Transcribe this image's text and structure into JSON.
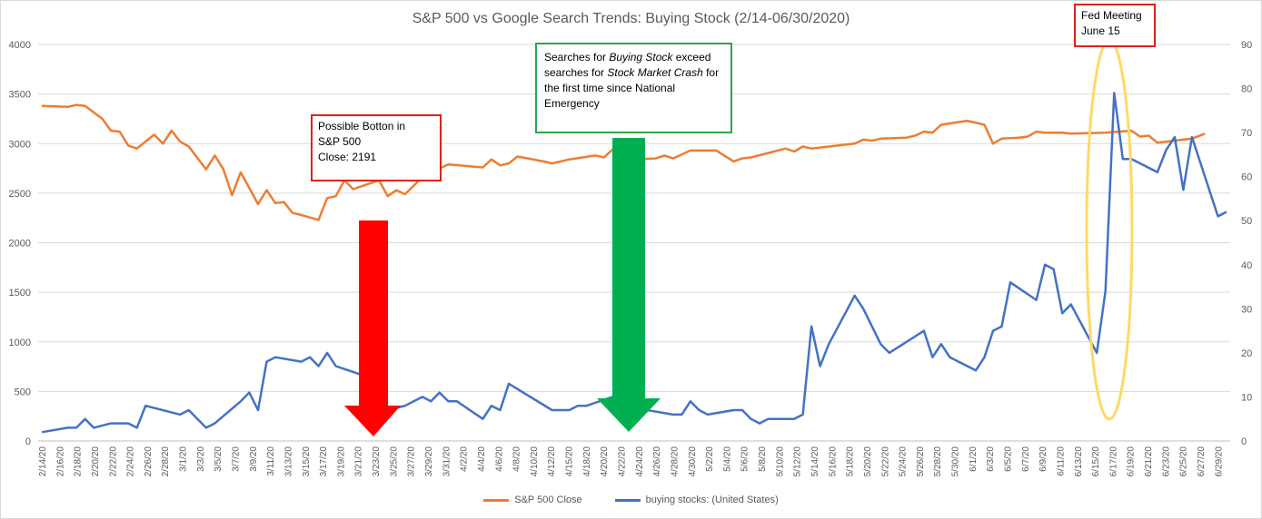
{
  "chart_data": {
    "type": "line",
    "title": "S&P 500 vs Google Search Trends: Buying Stock (2/14-06/30/2020)",
    "y_left": {
      "min": 0,
      "max": 4000,
      "ticks": [
        "0",
        "500",
        "1000",
        "1500",
        "2000",
        "2500",
        "3000",
        "3500",
        "4000"
      ]
    },
    "y_right": {
      "min": 0,
      "max": 90,
      "ticks": [
        "0",
        "10",
        "20",
        "30",
        "40",
        "50",
        "60",
        "70",
        "80",
        "90"
      ]
    },
    "x_tick_labels": [
      "2/14/20",
      "2/16/20",
      "2/18/20",
      "2/20/20",
      "2/22/20",
      "2/24/20",
      "2/26/20",
      "2/28/20",
      "3/1/20",
      "3/3/20",
      "3/5/20",
      "3/7/20",
      "3/9/20",
      "3/11/20",
      "3/13/20",
      "3/15/20",
      "3/17/20",
      "3/19/20",
      "3/21/20",
      "3/23/20",
      "3/25/20",
      "3/27/20",
      "3/29/20",
      "3/31/20",
      "4/2/20",
      "4/4/20",
      "4/6/20",
      "4/8/20",
      "4/10/20",
      "4/12/20",
      "4/15/20",
      "4/18/20",
      "4/20/20",
      "4/22/20",
      "4/24/20",
      "4/26/20",
      "4/28/20",
      "4/30/20",
      "5/2/20",
      "5/4/20",
      "5/6/20",
      "5/8/20",
      "5/10/20",
      "5/12/20",
      "5/14/20",
      "5/16/20",
      "5/18/20",
      "5/20/20",
      "5/22/20",
      "5/24/20",
      "5/26/20",
      "5/28/20",
      "5/30/20",
      "6/1/20",
      "6/3/20",
      "6/5/20",
      "6/7/20",
      "6/9/20",
      "6/11/20",
      "6/13/20",
      "6/15/20",
      "6/17/20",
      "6/19/20",
      "6/21/20",
      "6/23/20",
      "6/25/20",
      "6/27/20",
      "6/29/20"
    ],
    "x_count": 136,
    "series": [
      {
        "name": "S&P 500 Close",
        "axis": "left",
        "color": "#ED7D31",
        "points": [
          [
            0,
            3380
          ],
          [
            6,
            3370
          ],
          [
            8,
            3390
          ],
          [
            10,
            3380
          ],
          [
            14,
            3250
          ],
          [
            16,
            3130
          ],
          [
            18,
            3120
          ],
          [
            20,
            2980
          ],
          [
            22,
            2950
          ],
          [
            26,
            3090
          ],
          [
            28,
            3000
          ],
          [
            30,
            3130
          ],
          [
            32,
            3020
          ],
          [
            34,
            2970
          ],
          [
            38,
            2740
          ],
          [
            40,
            2880
          ],
          [
            42,
            2740
          ],
          [
            44,
            2480
          ],
          [
            46,
            2710
          ],
          [
            50,
            2390
          ],
          [
            52,
            2530
          ],
          [
            54,
            2400
          ],
          [
            56,
            2410
          ],
          [
            58,
            2300
          ],
          [
            60,
            2280
          ],
          [
            64,
            2230
          ],
          [
            66,
            2450
          ],
          [
            68,
            2470
          ],
          [
            70,
            2630
          ],
          [
            72,
            2540
          ],
          [
            76,
            2600
          ],
          [
            78,
            2630
          ],
          [
            80,
            2470
          ],
          [
            82,
            2530
          ],
          [
            84,
            2490
          ],
          [
            88,
            2660
          ],
          [
            90,
            2660
          ],
          [
            92,
            2750
          ],
          [
            94,
            2790
          ],
          [
            102,
            2760
          ],
          [
            104,
            2840
          ],
          [
            106,
            2780
          ],
          [
            108,
            2800
          ],
          [
            110,
            2870
          ],
          [
            116,
            2820
          ],
          [
            118,
            2800
          ],
          [
            122,
            2840
          ],
          [
            128,
            2880
          ],
          [
            130,
            2860
          ],
          [
            132,
            2940
          ],
          [
            134,
            2910
          ],
          [
            136,
            2840
          ],
          [
            142,
            2850
          ],
          [
            144,
            2880
          ],
          [
            146,
            2850
          ],
          [
            150,
            2930
          ],
          [
            156,
            2930
          ],
          [
            160,
            2820
          ],
          [
            162,
            2850
          ],
          [
            164,
            2860
          ],
          [
            172,
            2950
          ],
          [
            174,
            2920
          ],
          [
            176,
            2970
          ],
          [
            178,
            2950
          ],
          [
            188,
            3000
          ],
          [
            190,
            3040
          ],
          [
            192,
            3030
          ],
          [
            194,
            3050
          ],
          [
            200,
            3060
          ],
          [
            202,
            3080
          ],
          [
            204,
            3120
          ],
          [
            206,
            3110
          ],
          [
            208,
            3190
          ],
          [
            214,
            3230
          ],
          [
            218,
            3190
          ],
          [
            220,
            3000
          ],
          [
            222,
            3050
          ],
          [
            226,
            3060
          ],
          [
            228,
            3070
          ],
          [
            230,
            3120
          ],
          [
            232,
            3110
          ],
          [
            236,
            3110
          ],
          [
            238,
            3100
          ],
          [
            246,
            3110
          ],
          [
            252,
            3130
          ],
          [
            254,
            3070
          ],
          [
            256,
            3080
          ],
          [
            258,
            3010
          ],
          [
            266,
            3050
          ],
          [
            269,
            3100
          ]
        ]
      },
      {
        "name": "buying stocks: (United States)",
        "axis": "right",
        "color": "#4472C4",
        "points": [
          [
            0,
            2
          ],
          [
            6,
            3
          ],
          [
            8,
            3
          ],
          [
            10,
            5
          ],
          [
            12,
            3
          ],
          [
            16,
            4
          ],
          [
            20,
            4
          ],
          [
            22,
            3
          ],
          [
            24,
            8
          ],
          [
            32,
            6
          ],
          [
            34,
            7
          ],
          [
            38,
            3
          ],
          [
            40,
            4
          ],
          [
            46,
            9
          ],
          [
            48,
            11
          ],
          [
            50,
            7
          ],
          [
            52,
            18
          ],
          [
            54,
            19
          ],
          [
            60,
            18
          ],
          [
            62,
            19
          ],
          [
            64,
            17
          ],
          [
            66,
            20
          ],
          [
            68,
            17
          ],
          [
            74,
            15
          ],
          [
            76,
            16
          ],
          [
            78,
            16
          ],
          [
            80,
            7
          ],
          [
            84,
            8
          ],
          [
            88,
            10
          ],
          [
            90,
            9
          ],
          [
            92,
            11
          ],
          [
            94,
            9
          ],
          [
            96,
            9
          ],
          [
            102,
            5
          ],
          [
            104,
            8
          ],
          [
            106,
            7
          ],
          [
            108,
            13
          ],
          [
            118,
            7
          ],
          [
            122,
            7
          ],
          [
            124,
            8
          ],
          [
            126,
            8
          ],
          [
            132,
            10
          ],
          [
            134,
            11
          ],
          [
            136,
            11
          ],
          [
            140,
            7
          ],
          [
            146,
            6
          ],
          [
            148,
            6
          ],
          [
            150,
            9
          ],
          [
            152,
            7
          ],
          [
            154,
            6
          ],
          [
            160,
            7
          ],
          [
            162,
            7
          ],
          [
            164,
            5
          ],
          [
            166,
            4
          ],
          [
            168,
            5
          ],
          [
            174,
            5
          ],
          [
            176,
            6
          ],
          [
            178,
            26
          ],
          [
            180,
            17
          ],
          [
            182,
            22
          ],
          [
            188,
            33
          ],
          [
            190,
            30
          ],
          [
            192,
            26
          ],
          [
            194,
            22
          ],
          [
            196,
            20
          ],
          [
            204,
            25
          ],
          [
            206,
            19
          ],
          [
            208,
            22
          ],
          [
            210,
            19
          ],
          [
            216,
            16
          ],
          [
            218,
            19
          ],
          [
            220,
            25
          ],
          [
            222,
            26
          ],
          [
            224,
            36
          ],
          [
            230,
            32
          ],
          [
            232,
            40
          ],
          [
            234,
            39
          ],
          [
            236,
            29
          ],
          [
            238,
            31
          ],
          [
            244,
            20
          ],
          [
            246,
            34
          ],
          [
            248,
            79
          ],
          [
            250,
            64
          ],
          [
            252,
            64
          ],
          [
            258,
            61
          ],
          [
            260,
            66
          ],
          [
            262,
            69
          ],
          [
            264,
            57
          ],
          [
            266,
            69
          ],
          [
            272,
            51
          ],
          [
            274,
            52
          ]
        ]
      }
    ],
    "legend_position": "bottom",
    "grid": {
      "horizontal": true,
      "vertical": false
    }
  },
  "annotations": {
    "bottom_note": {
      "line1": "Possible Botton in",
      "line2": "S&P 500",
      "line3": "Close: 2191"
    },
    "search_note": {
      "pre": "Searches for ",
      "italic1": "Buying Stock",
      "mid1": " exceed searches for ",
      "italic2": "Stock Market Crash",
      "post": " for the first time since National Emergency"
    },
    "fed_note": {
      "line1": "Fed Meeting",
      "line2": "June 15"
    }
  },
  "colors": {
    "red_arrow": "#FF0000",
    "green_arrow": "#00B050",
    "ellipse": "#FFD966",
    "grid": "#d9d9d9",
    "axis_text": "#595959"
  }
}
